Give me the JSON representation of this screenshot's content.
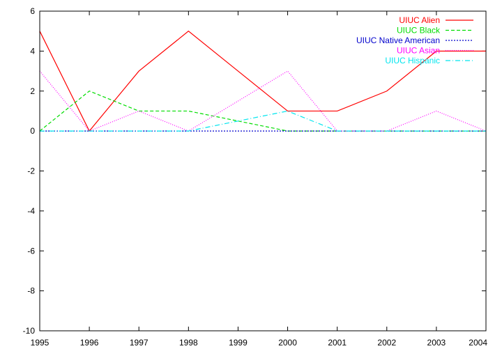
{
  "chart_data": {
    "type": "line",
    "title": "",
    "xlabel": "",
    "ylabel": "",
    "x": [
      1995,
      1996,
      1997,
      1998,
      1999,
      2000,
      2001,
      2002,
      2003,
      2004
    ],
    "xlim": [
      1995,
      2004
    ],
    "ylim": [
      -10,
      6
    ],
    "xticks": [
      1995,
      1996,
      1997,
      1998,
      1999,
      2000,
      2001,
      2002,
      2003,
      2004
    ],
    "yticks": [
      -10,
      -8,
      -6,
      -4,
      -2,
      0,
      2,
      4,
      6
    ],
    "grid": false,
    "legend_position": "top-right",
    "series": [
      {
        "name": "UIUC Alien",
        "color": "#ff0000",
        "dash": "solid",
        "values": [
          5,
          0,
          3,
          5,
          3,
          1,
          1,
          2,
          4,
          4
        ]
      },
      {
        "name": "UIUC Black",
        "color": "#00dd00",
        "dash": "dashed",
        "values": [
          0,
          2,
          1,
          1,
          0.5,
          0,
          0,
          0,
          0,
          0
        ]
      },
      {
        "name": "UIUC Native American",
        "color": "#0000cc",
        "dash": "dotted",
        "values": [
          0,
          0,
          0,
          0,
          0,
          0,
          0,
          0,
          0,
          0
        ]
      },
      {
        "name": "UIUC Asian",
        "color": "#ff00ff",
        "dash": "dotted-fine",
        "values": [
          3,
          0,
          1,
          0,
          1.5,
          3,
          0,
          0,
          1,
          0
        ]
      },
      {
        "name": "UIUC Hispanic",
        "color": "#00e5ee",
        "dash": "dashdot",
        "values": [
          0,
          0,
          0,
          0,
          0.5,
          1,
          0,
          0,
          0,
          0
        ]
      }
    ]
  }
}
